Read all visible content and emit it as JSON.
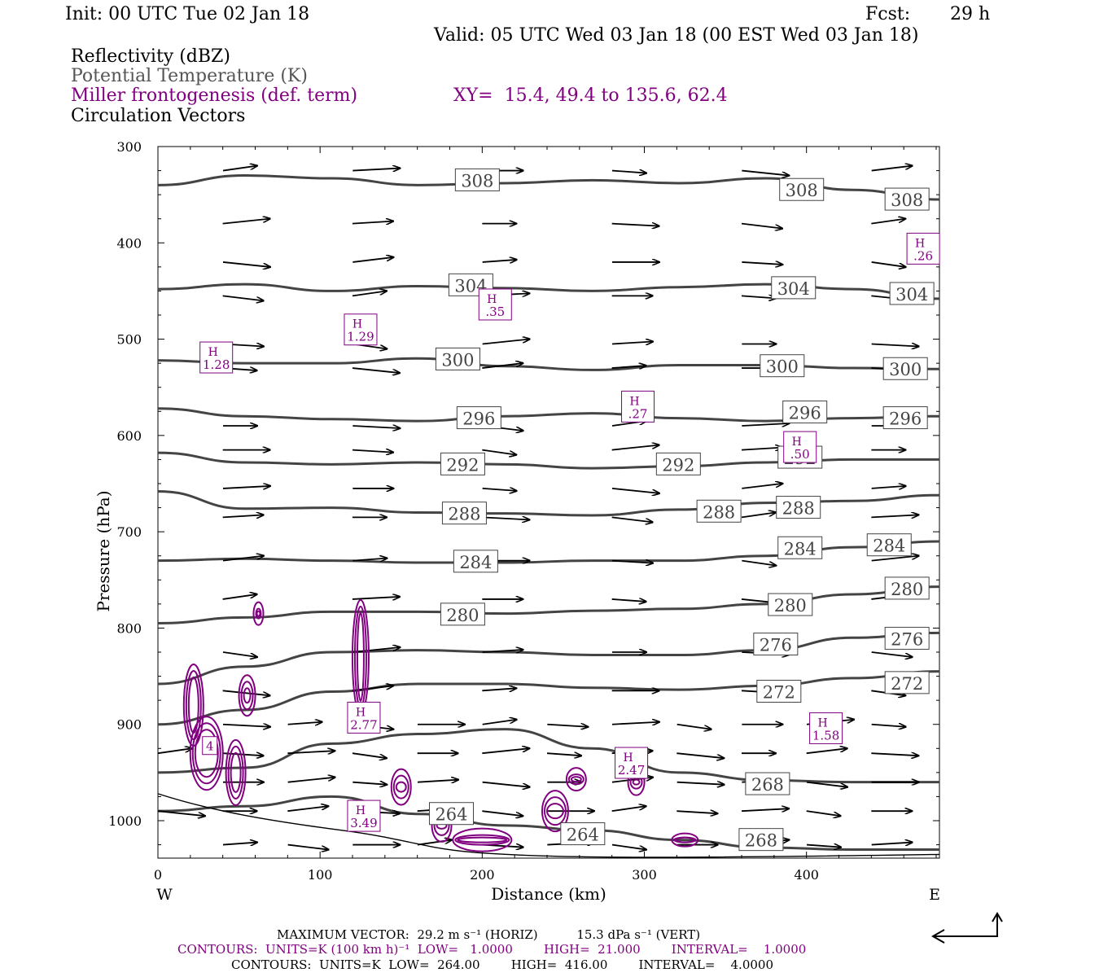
{
  "header": {
    "init": "Init: 00 UTC Tue 02 Jan 18",
    "fcst_label": "Fcst:",
    "fcst_value": "29 h",
    "valid": "Valid: 05 UTC Wed 03 Jan 18 (00 EST Wed 03 Jan 18)",
    "legend_reflectivity": "Reflectivity (dBZ)",
    "legend_theta": "Potential Temperature (K)",
    "legend_fronto": "Miller frontogenesis (def. term)",
    "xy_label": "XY=  15.4, 49.4 to 135.6, 62.4",
    "legend_vectors": "Circulation Vectors"
  },
  "colors": {
    "theta": "#444444",
    "fronto": "#800080",
    "vectors": "#000000",
    "axis": "#000000"
  },
  "chart_data": {
    "type": "cross-section",
    "xlabel": "Distance (km)",
    "ylabel": "Pressure (hPa)",
    "xlim": [
      0,
      482
    ],
    "ylim": [
      1040,
      300
    ],
    "x_ticks": [
      0,
      100,
      200,
      300,
      400
    ],
    "y_ticks": [
      300,
      400,
      500,
      600,
      700,
      800,
      900,
      1000
    ],
    "x_end_labels": [
      "W",
      "E"
    ],
    "theta_levels": [
      {
        "label": "308",
        "y": [
          340,
          330,
          333,
          340,
          338,
          335,
          338,
          333,
          345,
          355
        ]
      },
      {
        "label": "304",
        "y": [
          448,
          443,
          450,
          445,
          447,
          450,
          446,
          443,
          448,
          458
        ]
      },
      {
        "label": "300",
        "y": [
          522,
          525,
          525,
          520,
          528,
          532,
          527,
          527,
          530,
          531
        ]
      },
      {
        "label": "296",
        "y": [
          572,
          580,
          583,
          585,
          580,
          577,
          582,
          585,
          582,
          580
        ]
      },
      {
        "label": "292",
        "y": [
          618,
          628,
          630,
          628,
          630,
          634,
          632,
          628,
          625,
          625
        ]
      },
      {
        "label": "288",
        "y": [
          658,
          676,
          675,
          680,
          681,
          683,
          677,
          670,
          668,
          662
        ]
      },
      {
        "label": "284",
        "y": [
          730,
          728,
          730,
          732,
          732,
          730,
          730,
          725,
          716,
          710
        ]
      },
      {
        "label": "280",
        "y": [
          795,
          789,
          783,
          783,
          785,
          782,
          780,
          775,
          765,
          757
        ]
      },
      {
        "label": "276",
        "y": [
          858,
          840,
          825,
          823,
          825,
          828,
          828,
          823,
          810,
          805
        ]
      },
      {
        "label": "272",
        "y": [
          900,
          885,
          866,
          858,
          858,
          862,
          864,
          860,
          852,
          845
        ]
      },
      {
        "label": "268",
        "y": [
          950,
          945,
          920,
          910,
          905,
          925,
          950,
          958,
          960,
          960
        ]
      },
      {
        "label": "264",
        "y": [
          990,
          985,
          975,
          993,
          1005,
          1010,
          1020,
          1028,
          1030,
          1030
        ]
      }
    ],
    "theta_labels": [
      {
        "text": "308",
        "x": 197,
        "p": 335
      },
      {
        "text": "308",
        "x": 397,
        "p": 345
      },
      {
        "text": "308",
        "x": 462,
        "p": 355
      },
      {
        "text": "304",
        "x": 193,
        "p": 444
      },
      {
        "text": "304",
        "x": 392,
        "p": 447
      },
      {
        "text": "304",
        "x": 465,
        "p": 453
      },
      {
        "text": "300",
        "x": 185,
        "p": 521
      },
      {
        "text": "300",
        "x": 385,
        "p": 528
      },
      {
        "text": "300",
        "x": 461,
        "p": 531
      },
      {
        "text": "296",
        "x": 198,
        "p": 582
      },
      {
        "text": "296",
        "x": 399,
        "p": 576
      },
      {
        "text": "296",
        "x": 461,
        "p": 582
      },
      {
        "text": "292",
        "x": 188,
        "p": 630
      },
      {
        "text": "292",
        "x": 321,
        "p": 630
      },
      {
        "text": "292",
        "x": 396,
        "p": 623
      },
      {
        "text": "288",
        "x": 189,
        "p": 681
      },
      {
        "text": "288",
        "x": 346,
        "p": 679
      },
      {
        "text": "288",
        "x": 395,
        "p": 675
      },
      {
        "text": "284",
        "x": 196,
        "p": 731
      },
      {
        "text": "284",
        "x": 396,
        "p": 717
      },
      {
        "text": "284",
        "x": 451,
        "p": 714
      },
      {
        "text": "280",
        "x": 188,
        "p": 786
      },
      {
        "text": "280",
        "x": 390,
        "p": 776
      },
      {
        "text": "280",
        "x": 462,
        "p": 759
      },
      {
        "text": "276",
        "x": 381,
        "p": 817
      },
      {
        "text": "276",
        "x": 462,
        "p": 811
      },
      {
        "text": "272",
        "x": 383,
        "p": 866
      },
      {
        "text": "272",
        "x": 462,
        "p": 857
      },
      {
        "text": "268",
        "x": 376,
        "p": 962
      },
      {
        "text": "268",
        "x": 372,
        "p": 1020
      },
      {
        "text": "264",
        "x": 181,
        "p": 993
      },
      {
        "text": "264",
        "x": 262,
        "p": 1014
      }
    ],
    "fronto_highs": [
      {
        "label": "H",
        "value": "1.29",
        "x": 125,
        "p": 490
      },
      {
        "label": "H",
        "value": "1.28",
        "x": 36,
        "p": 519
      },
      {
        "label": "H",
        "value": ".35",
        "x": 208,
        "p": 464
      },
      {
        "label": "H",
        "value": ".27",
        "x": 296,
        "p": 570
      },
      {
        "label": "H",
        "value": ".26",
        "x": 472,
        "p": 406
      },
      {
        "label": "H",
        "value": ".50",
        "x": 396,
        "p": 612
      },
      {
        "label": "H",
        "value": "2.77",
        "x": 127,
        "p": 893
      },
      {
        "label": "H",
        "value": "2.47",
        "x": 292,
        "p": 940
      },
      {
        "label": "H",
        "value": "1.58",
        "x": 412,
        "p": 904
      },
      {
        "label": "H",
        "value": "3.49",
        "x": 127,
        "p": 995
      },
      {
        "label": "",
        "value": "4",
        "x": 32,
        "p": 922
      }
    ],
    "vector_rows_p": [
      325,
      380,
      420,
      455,
      505,
      530,
      590,
      615,
      655,
      685,
      730,
      770,
      825,
      865,
      900,
      930,
      960,
      990,
      1025
    ],
    "footer": {
      "max_vector": "MAXIMUM VECTOR:  29.2 m s⁻¹ (HORIZ)          15.3 dPa s⁻¹ (VERT)",
      "fronto_contours": "CONTOURS:  UNITS=K (100 km h)⁻¹  LOW=   1.0000        HIGH=  21.000        INTERVAL=    1.0000",
      "theta_contours": "CONTOURS:  UNITS=K  LOW=  264.00        HIGH=  416.00        INTERVAL=    4.0000"
    }
  }
}
